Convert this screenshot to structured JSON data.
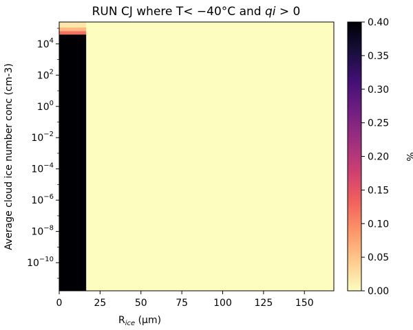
{
  "chart_data": {
    "type": "heatmap",
    "title_prefix": "RUN CJ where T",
    "title_math": "< −40°C",
    "title_mid": " and ",
    "title_qi": "qi",
    "title_suffix": " > 0",
    "xlabel_main": "R",
    "xlabel_sub": "ice",
    "xlabel_unit": " (μm)",
    "ylabel": "Average cloud ice number conc (cm-3)",
    "xlim": [
      0,
      168
    ],
    "ylim_log10": [
      -11.8,
      5.4
    ],
    "yscale": "log",
    "x_ticks": [
      {
        "value": 0,
        "label": "0"
      },
      {
        "value": 25,
        "label": "25"
      },
      {
        "value": 50,
        "label": "50"
      },
      {
        "value": 75,
        "label": "75"
      },
      {
        "value": 100,
        "label": "100"
      },
      {
        "value": 125,
        "label": "125"
      },
      {
        "value": 150,
        "label": "150"
      }
    ],
    "y_ticks": [
      {
        "exp": 4,
        "base": "10",
        "sup": "4"
      },
      {
        "exp": 2,
        "base": "10",
        "sup": "2"
      },
      {
        "exp": 0,
        "base": "10",
        "sup": "0"
      },
      {
        "exp": -2,
        "base": "10",
        "sup": "−2"
      },
      {
        "exp": -4,
        "base": "10",
        "sup": "−4"
      },
      {
        "exp": -6,
        "base": "10",
        "sup": "−6"
      },
      {
        "exp": -8,
        "base": "10",
        "sup": "−8"
      },
      {
        "exp": -10,
        "base": "10",
        "sup": "−10"
      }
    ],
    "background_value": 0.0,
    "cells": [
      {
        "x0": 0,
        "x1": 16.5,
        "y0_log10": -11.8,
        "y1_log10": 4.6,
        "value": 0.4
      },
      {
        "x0": 0,
        "x1": 16.5,
        "y0_log10": 4.6,
        "y1_log10": 4.82,
        "value": 0.12
      },
      {
        "x0": 0,
        "x1": 16.5,
        "y0_log10": 4.82,
        "y1_log10": 5.05,
        "value": 0.06
      },
      {
        "x0": 0,
        "x1": 16.5,
        "y0_log10": 5.05,
        "y1_log10": 5.4,
        "value": 0.02
      }
    ],
    "colorbar": {
      "label": "%",
      "colormap": "magma_r",
      "range": [
        0,
        0.4
      ],
      "ticks": [
        "0.00",
        "0.05",
        "0.10",
        "0.15",
        "0.20",
        "0.25",
        "0.30",
        "0.35",
        "0.40"
      ],
      "stops": [
        "#fcfdbf",
        "#feca8d",
        "#fd9668",
        "#f1605d",
        "#cd4071",
        "#9e2f7f",
        "#721f81",
        "#440f76",
        "#180f3d",
        "#000004"
      ]
    }
  }
}
